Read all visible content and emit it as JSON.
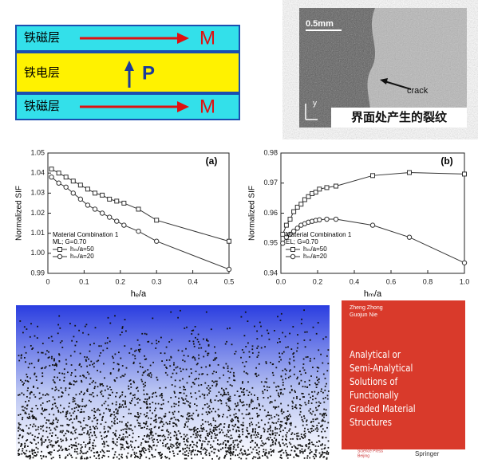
{
  "diagram": {
    "layers": [
      {
        "label": "铁磁层",
        "vector": "M"
      },
      {
        "label": "铁电层",
        "vector": "P"
      },
      {
        "label": "铁磁层",
        "vector": "M"
      }
    ]
  },
  "photo": {
    "scale": "0.5mm",
    "label": "crack",
    "axis": "y",
    "caption": "界面处产生的裂纹"
  },
  "chart_data": [
    {
      "type": "line",
      "title": "(a)",
      "x_label": "hₑ/a",
      "y_label": "Normalized SIF",
      "annotations": [
        "Material Combination 1",
        "ML; G=0.70"
      ],
      "x": [
        0.01,
        0.03,
        0.05,
        0.07,
        0.09,
        0.11,
        0.13,
        0.15,
        0.17,
        0.19,
        0.21,
        0.25,
        0.3,
        0.5
      ],
      "series": [
        {
          "name": "hₘ/a=50",
          "color": "#333333",
          "marker": "square",
          "values": [
            1.042,
            1.04,
            1.038,
            1.036,
            1.034,
            1.032,
            1.03,
            1.029,
            1.027,
            1.026,
            1.025,
            1.022,
            1.0165,
            1.006
          ]
        },
        {
          "name": "hₘ/a=20",
          "color": "#333333",
          "marker": "circle",
          "values": [
            1.038,
            1.035,
            1.033,
            1.03,
            1.027,
            1.024,
            1.022,
            1.02,
            1.018,
            1.016,
            1.014,
            1.011,
            1.006,
            0.992
          ]
        }
      ],
      "xlim": [
        0,
        0.5
      ],
      "xticks": [
        0,
        0.1,
        0.2,
        0.3,
        0.4,
        0.5
      ],
      "ylim": [
        0.99,
        1.05
      ],
      "yticks": [
        0.99,
        {
          "value": 1,
          "label": "1.00"
        },
        1.01,
        1.02,
        1.03,
        1.04,
        1.05
      ]
    },
    {
      "type": "line",
      "title": "(b)",
      "x_label": "hₘ/a",
      "y_label": "Normalized SIF",
      "annotations": [
        "Material Combination 1",
        "EL; G=0.70"
      ],
      "x": [
        0.01,
        0.03,
        0.05,
        0.07,
        0.09,
        0.11,
        0.13,
        0.15,
        0.17,
        0.19,
        0.21,
        0.25,
        0.3,
        0.5,
        0.7,
        1.0
      ],
      "series": [
        {
          "name": "hₘ/a=50",
          "color": "#333333",
          "marker": "square",
          "values": [
            0.953,
            0.956,
            0.958,
            0.9605,
            0.962,
            0.963,
            0.9645,
            0.9655,
            0.9665,
            0.967,
            0.968,
            0.9685,
            0.969,
            0.9725,
            0.9735,
            0.973
          ]
        },
        {
          "name": "hₘ/a=20",
          "color": "#333333",
          "marker": "circle",
          "values": [
            0.95,
            0.952,
            0.953,
            0.954,
            0.955,
            0.956,
            0.9565,
            0.957,
            0.9573,
            0.9576,
            0.9578,
            0.958,
            0.958,
            0.956,
            0.952,
            0.9435
          ]
        }
      ],
      "xlim": [
        0,
        1
      ],
      "xticks": [
        {
          "value": 0,
          "label": "0.0"
        },
        0.2,
        0.4,
        0.6,
        0.8,
        {
          "value": 1,
          "label": "1.0"
        }
      ],
      "ylim": [
        0.94,
        0.98
      ],
      "yticks": [
        0.94,
        0.95,
        0.96,
        0.97,
        0.98
      ]
    }
  ],
  "book": {
    "authors": [
      "Zheng Zhong",
      "Guojun Nie"
    ],
    "title_lines": [
      "Analytical or",
      "Semi-Analytical",
      "Solutions of",
      "Functionally",
      "Graded Material",
      "Structures"
    ],
    "publisher": "Science Press",
    "city": "Beijing",
    "imprint": "Springer"
  }
}
